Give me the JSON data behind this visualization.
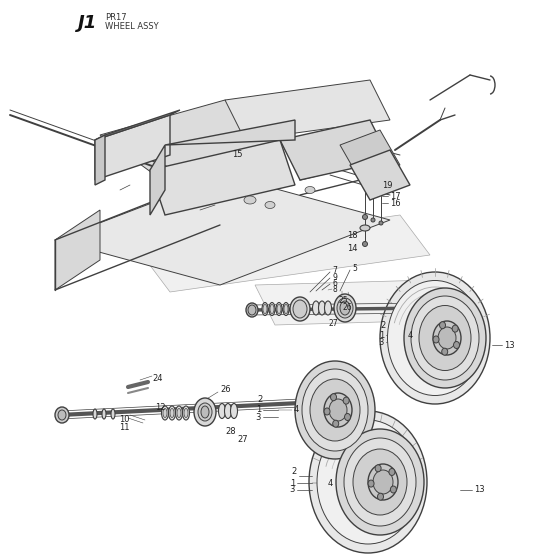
{
  "title_bold": "J1",
  "title_sub1": "PR17",
  "title_sub2": "WHEEL ASSY",
  "bg_color": "#ffffff",
  "line_color": "#404040",
  "label_color": "#222222",
  "fig_width": 5.6,
  "fig_height": 5.6,
  "dpi": 100
}
